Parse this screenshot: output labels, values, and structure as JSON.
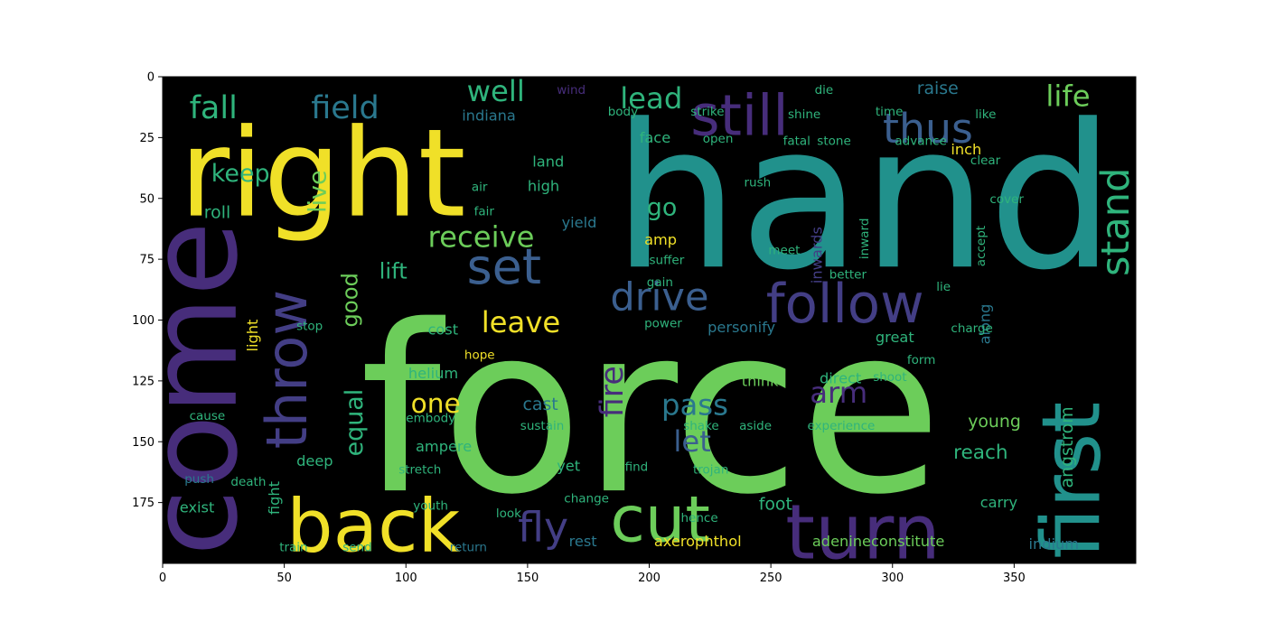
{
  "chart_data": {
    "type": "wordcloud",
    "title": "",
    "xlabel": "",
    "ylabel": "",
    "xlim": [
      0,
      400
    ],
    "ylim": [
      200,
      0
    ],
    "xticks": [
      0,
      50,
      100,
      150,
      200,
      250,
      300,
      350
    ],
    "yticks": [
      0,
      25,
      50,
      75,
      100,
      125,
      150,
      175
    ],
    "xtick_labels": [
      "0",
      "50",
      "100",
      "150",
      "200",
      "250",
      "300",
      "350"
    ],
    "ytick_labels": [
      "0",
      "25",
      "50",
      "75",
      "100",
      "125",
      "150",
      "175"
    ],
    "background": "#000000",
    "palette": {
      "yellow": "#f0e028",
      "lime": "#6ccd5a",
      "teal": "#21918c",
      "blue": "#3b5f8f",
      "purple": "#472d7b",
      "indigo": "#433e85",
      "green": "#2fb47c",
      "sea": "#2a788e"
    },
    "words": [
      {
        "text": "force",
        "x": 81,
        "y": 170,
        "size": 95,
        "color": "#6ccd5a"
      },
      {
        "text": "hand",
        "x": 185,
        "y": 78,
        "size": 82,
        "color": "#21918c"
      },
      {
        "text": "right",
        "x": 7,
        "y": 57,
        "size": 50,
        "color": "#f0e028"
      },
      {
        "text": "come",
        "x": 30,
        "y": 197,
        "size": 50,
        "color": "#472d7b",
        "rotate": true
      },
      {
        "text": "still",
        "x": 217,
        "y": 24,
        "size": 23,
        "color": "#472d7b"
      },
      {
        "text": "back",
        "x": 51,
        "y": 195,
        "size": 30,
        "color": "#f0e028"
      },
      {
        "text": "cut",
        "x": 184,
        "y": 191,
        "size": 26,
        "color": "#6ccd5a"
      },
      {
        "text": "turn",
        "x": 256,
        "y": 198,
        "size": 31,
        "color": "#472d7b"
      },
      {
        "text": "first",
        "x": 385,
        "y": 198,
        "size": 33,
        "color": "#21918c",
        "rotate": true
      },
      {
        "text": "set",
        "x": 125,
        "y": 85,
        "size": 20,
        "color": "#3b5f8f"
      },
      {
        "text": "throw",
        "x": 59,
        "y": 153,
        "size": 23,
        "color": "#433e85",
        "rotate": true
      },
      {
        "text": "drive",
        "x": 184,
        "y": 96,
        "size": 16,
        "color": "#3b5f8f"
      },
      {
        "text": "follow",
        "x": 248,
        "y": 101,
        "size": 22,
        "color": "#433e85"
      },
      {
        "text": "stand",
        "x": 397,
        "y": 82,
        "size": 16,
        "color": "#2fb47c",
        "rotate": true
      },
      {
        "text": "thus",
        "x": 296,
        "y": 27,
        "size": 17,
        "color": "#3b5f8f"
      },
      {
        "text": "life",
        "x": 363,
        "y": 12,
        "size": 12,
        "color": "#6ccd5a"
      },
      {
        "text": "fall",
        "x": 11,
        "y": 17,
        "size": 13,
        "color": "#2fb47c"
      },
      {
        "text": "field",
        "x": 61,
        "y": 17,
        "size": 13,
        "color": "#2a788e"
      },
      {
        "text": "well",
        "x": 125,
        "y": 10,
        "size": 12,
        "color": "#2fb47c"
      },
      {
        "text": "lead",
        "x": 188,
        "y": 13,
        "size": 12,
        "color": "#2fb47c"
      },
      {
        "text": "keep",
        "x": 20,
        "y": 43,
        "size": 10,
        "color": "#2fb47c"
      },
      {
        "text": "live",
        "x": 67,
        "y": 56,
        "size": 10,
        "color": "#6ccd5a",
        "rotate": true
      },
      {
        "text": "roll",
        "x": 17,
        "y": 58,
        "size": 7,
        "color": "#2fb47c"
      },
      {
        "text": "receive",
        "x": 109,
        "y": 70,
        "size": 12,
        "color": "#6ccd5a"
      },
      {
        "text": "go",
        "x": 199,
        "y": 57,
        "size": 10,
        "color": "#2fb47c"
      },
      {
        "text": "lift",
        "x": 89,
        "y": 83,
        "size": 9,
        "color": "#2fb47c"
      },
      {
        "text": "good",
        "x": 80,
        "y": 103,
        "size": 9,
        "color": "#6ccd5a",
        "rotate": true
      },
      {
        "text": "leave",
        "x": 131,
        "y": 105,
        "size": 12,
        "color": "#f0e028"
      },
      {
        "text": "fire",
        "x": 189,
        "y": 140,
        "size": 13,
        "color": "#472d7b",
        "rotate": true
      },
      {
        "text": "pass",
        "x": 205,
        "y": 139,
        "size": 12,
        "color": "#2a788e"
      },
      {
        "text": "arm",
        "x": 266,
        "y": 134,
        "size": 12,
        "color": "#472d7b"
      },
      {
        "text": "let",
        "x": 210,
        "y": 154,
        "size": 12,
        "color": "#3b5f8f"
      },
      {
        "text": "equal",
        "x": 82,
        "y": 156,
        "size": 10,
        "color": "#2fb47c",
        "rotate": true
      },
      {
        "text": "one",
        "x": 102,
        "y": 138,
        "size": 11,
        "color": "#f0e028"
      },
      {
        "text": "fly",
        "x": 146,
        "y": 191,
        "size": 17,
        "color": "#433e85"
      },
      {
        "text": "young",
        "x": 331,
        "y": 144,
        "size": 7,
        "color": "#6ccd5a"
      },
      {
        "text": "reach",
        "x": 325,
        "y": 157,
        "size": 8,
        "color": "#2fb47c"
      },
      {
        "text": "angstrom",
        "x": 374,
        "y": 169,
        "size": 7,
        "color": "#2fb47c",
        "rotate": true
      },
      {
        "text": "carry",
        "x": 336,
        "y": 177,
        "size": 6,
        "color": "#2fb47c"
      },
      {
        "text": "foot",
        "x": 245,
        "y": 178,
        "size": 7,
        "color": "#2fb47c"
      },
      {
        "text": "indiana",
        "x": 123,
        "y": 18,
        "size": 6,
        "color": "#2a788e"
      },
      {
        "text": "raise",
        "x": 310,
        "y": 7,
        "size": 7,
        "color": "#2a788e"
      },
      {
        "text": "inch",
        "x": 324,
        "y": 32,
        "size": 6,
        "color": "#f0e028"
      },
      {
        "text": "face",
        "x": 196,
        "y": 27,
        "size": 6,
        "color": "#2fb47c"
      },
      {
        "text": "helium",
        "x": 101,
        "y": 124,
        "size": 6,
        "color": "#2fb47c"
      },
      {
        "text": "cast",
        "x": 148,
        "y": 137,
        "size": 7,
        "color": "#2a788e"
      },
      {
        "text": "ampere",
        "x": 104,
        "y": 154,
        "size": 6,
        "color": "#2fb47c"
      },
      {
        "text": "think",
        "x": 238,
        "y": 127,
        "size": 6,
        "color": "#6ccd5a"
      },
      {
        "text": "direct",
        "x": 270,
        "y": 126,
        "size": 6,
        "color": "#2fb47c"
      },
      {
        "text": "great",
        "x": 293,
        "y": 109,
        "size": 6,
        "color": "#2fb47c"
      },
      {
        "text": "axerophthol",
        "x": 202,
        "y": 193,
        "size": 6,
        "color": "#f0e028"
      },
      {
        "text": "adenineconstitute",
        "x": 267,
        "y": 193,
        "size": 6,
        "color": "#6ccd5a"
      },
      {
        "text": "indium",
        "x": 356,
        "y": 194,
        "size": 6,
        "color": "#2a788e"
      },
      {
        "text": "rest",
        "x": 167,
        "y": 193,
        "size": 6,
        "color": "#2a788e"
      },
      {
        "text": "train",
        "x": 48,
        "y": 195,
        "size": 5,
        "color": "#2fb47c"
      },
      {
        "text": "send",
        "x": 74,
        "y": 195,
        "size": 5,
        "color": "#2fb47c"
      },
      {
        "text": "return",
        "x": 118,
        "y": 195,
        "size": 5,
        "color": "#2a788e"
      },
      {
        "text": "fight",
        "x": 48,
        "y": 180,
        "size": 6,
        "color": "#2fb47c",
        "rotate": true
      },
      {
        "text": "exist",
        "x": 7,
        "y": 179,
        "size": 6,
        "color": "#2fb47c"
      },
      {
        "text": "light",
        "x": 39,
        "y": 113,
        "size": 6,
        "color": "#f0e028",
        "rotate": true
      },
      {
        "text": "deep",
        "x": 55,
        "y": 160,
        "size": 6,
        "color": "#2fb47c"
      },
      {
        "text": "death",
        "x": 28,
        "y": 168,
        "size": 5,
        "color": "#2fb47c"
      },
      {
        "text": "push",
        "x": 9,
        "y": 167,
        "size": 5,
        "color": "#2a788e"
      },
      {
        "text": "amp",
        "x": 198,
        "y": 69,
        "size": 6,
        "color": "#f0e028"
      },
      {
        "text": "yield",
        "x": 164,
        "y": 62,
        "size": 6,
        "color": "#2a788e"
      },
      {
        "text": "open",
        "x": 222,
        "y": 27,
        "size": 5,
        "color": "#2fb47c"
      },
      {
        "text": "fatal",
        "x": 255,
        "y": 28,
        "size": 5,
        "color": "#2fb47c"
      },
      {
        "text": "advance",
        "x": 301,
        "y": 28,
        "size": 5,
        "color": "#2fb47c"
      },
      {
        "text": "like",
        "x": 334,
        "y": 17,
        "size": 5,
        "color": "#2fb47c"
      },
      {
        "text": "clear",
        "x": 332,
        "y": 36,
        "size": 5,
        "color": "#2fb47c"
      },
      {
        "text": "inwards",
        "x": 271,
        "y": 85,
        "size": 6,
        "color": "#433e85",
        "rotate": true
      },
      {
        "text": "inward",
        "x": 290,
        "y": 75,
        "size": 5,
        "color": "#2fb47c",
        "rotate": true
      },
      {
        "text": "accept",
        "x": 338,
        "y": 78,
        "size": 5,
        "color": "#2fb47c",
        "rotate": true
      },
      {
        "text": "cover",
        "x": 340,
        "y": 52,
        "size": 5,
        "color": "#2fb47c"
      },
      {
        "text": "personify",
        "x": 224,
        "y": 105,
        "size": 6,
        "color": "#2a788e"
      },
      {
        "text": "along",
        "x": 340,
        "y": 110,
        "size": 6,
        "color": "#2a788e",
        "rotate": true
      },
      {
        "text": "charge",
        "x": 324,
        "y": 105,
        "size": 5,
        "color": "#2fb47c"
      },
      {
        "text": "form",
        "x": 306,
        "y": 118,
        "size": 5,
        "color": "#2fb47c"
      },
      {
        "text": "embody",
        "x": 100,
        "y": 142,
        "size": 5,
        "color": "#2fb47c"
      },
      {
        "text": "find",
        "x": 190,
        "y": 162,
        "size": 5,
        "color": "#2fb47c"
      },
      {
        "text": "yet",
        "x": 162,
        "y": 162,
        "size": 6,
        "color": "#2fb47c"
      },
      {
        "text": "stretch",
        "x": 97,
        "y": 163,
        "size": 5,
        "color": "#2fb47c"
      },
      {
        "text": "trojan",
        "x": 218,
        "y": 163,
        "size": 5,
        "color": "#2fb47c"
      },
      {
        "text": "change",
        "x": 165,
        "y": 175,
        "size": 5,
        "color": "#2fb47c"
      },
      {
        "text": "hence",
        "x": 213,
        "y": 183,
        "size": 5,
        "color": "#2fb47c"
      },
      {
        "text": "youth",
        "x": 103,
        "y": 178,
        "size": 5,
        "color": "#2fb47c"
      },
      {
        "text": "look",
        "x": 137,
        "y": 181,
        "size": 5,
        "color": "#2fb47c"
      },
      {
        "text": "experience",
        "x": 265,
        "y": 145,
        "size": 5,
        "color": "#2fb47c"
      },
      {
        "text": "shoot",
        "x": 292,
        "y": 125,
        "size": 5,
        "color": "#2fb47c"
      },
      {
        "text": "suffer",
        "x": 200,
        "y": 77,
        "size": 5,
        "color": "#2fb47c"
      },
      {
        "text": "gain",
        "x": 199,
        "y": 86,
        "size": 5,
        "color": "#2fb47c"
      },
      {
        "text": "better",
        "x": 274,
        "y": 83,
        "size": 5,
        "color": "#2fb47c"
      },
      {
        "text": "lie",
        "x": 318,
        "y": 88,
        "size": 5,
        "color": "#2fb47c"
      },
      {
        "text": "high",
        "x": 150,
        "y": 47,
        "size": 6,
        "color": "#2fb47c"
      },
      {
        "text": "land",
        "x": 152,
        "y": 37,
        "size": 6,
        "color": "#2fb47c"
      },
      {
        "text": "rush",
        "x": 239,
        "y": 45,
        "size": 5,
        "color": "#2fb47c"
      },
      {
        "text": "meet",
        "x": 249,
        "y": 73,
        "size": 5,
        "color": "#2fb47c"
      },
      {
        "text": "stone",
        "x": 269,
        "y": 28,
        "size": 5,
        "color": "#2fb47c"
      },
      {
        "text": "shine",
        "x": 257,
        "y": 17,
        "size": 5,
        "color": "#2fb47c"
      },
      {
        "text": "die",
        "x": 268,
        "y": 7,
        "size": 5,
        "color": "#2fb47c"
      },
      {
        "text": "time",
        "x": 293,
        "y": 16,
        "size": 5,
        "color": "#2fb47c"
      },
      {
        "text": "body",
        "x": 183,
        "y": 16,
        "size": 5,
        "color": "#2fb47c"
      },
      {
        "text": "strike",
        "x": 217,
        "y": 16,
        "size": 5,
        "color": "#2fb47c"
      },
      {
        "text": "wind",
        "x": 162,
        "y": 7,
        "size": 5,
        "color": "#472d7b"
      },
      {
        "text": "fair",
        "x": 128,
        "y": 57,
        "size": 5,
        "color": "#2fb47c"
      },
      {
        "text": "air",
        "x": 127,
        "y": 47,
        "size": 5,
        "color": "#2fb47c"
      },
      {
        "text": "cost",
        "x": 109,
        "y": 106,
        "size": 6,
        "color": "#2fb47c"
      },
      {
        "text": "hope",
        "x": 124,
        "y": 116,
        "size": 5,
        "color": "#f0e028"
      },
      {
        "text": "stop",
        "x": 55,
        "y": 104,
        "size": 5,
        "color": "#2fb47c"
      },
      {
        "text": "cause",
        "x": 11,
        "y": 141,
        "size": 5,
        "color": "#2fb47c"
      },
      {
        "text": "sustain",
        "x": 147,
        "y": 145,
        "size": 5,
        "color": "#2fb47c"
      },
      {
        "text": "shake",
        "x": 214,
        "y": 145,
        "size": 5,
        "color": "#2fb47c"
      },
      {
        "text": "aside",
        "x": 237,
        "y": 145,
        "size": 5,
        "color": "#2fb47c"
      },
      {
        "text": "power",
        "x": 198,
        "y": 103,
        "size": 5,
        "color": "#2fb47c"
      },
      {
        "text": "stand",
        "x": 0,
        "y": 0,
        "size": 0,
        "color": "#000000"
      }
    ]
  }
}
